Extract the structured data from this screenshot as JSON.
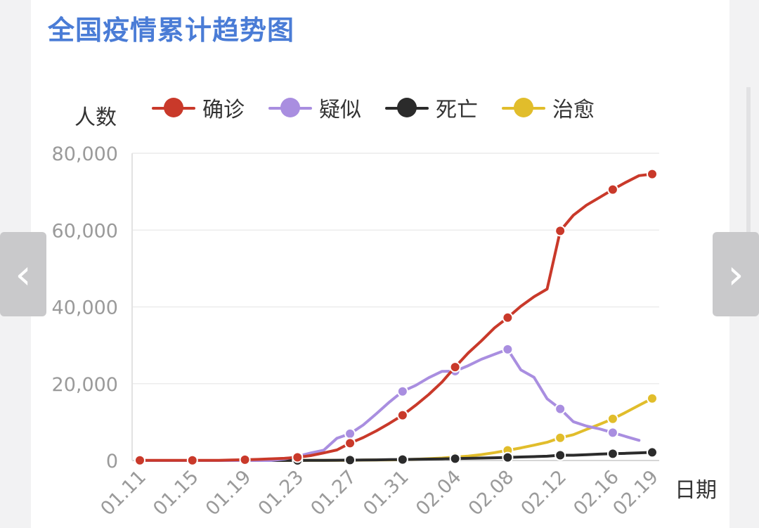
{
  "chart_data": {
    "type": "line",
    "title": "全国疫情累计趋势图",
    "ylabel": "人数",
    "xlabel": "日期",
    "ylim": [
      0,
      80000
    ],
    "yticks": [
      0,
      20000,
      40000,
      60000,
      80000
    ],
    "ytick_labels": [
      "0",
      "20,000",
      "40,000",
      "60,000",
      "80,000"
    ],
    "xticks": [
      "01.11",
      "01.15",
      "01.19",
      "01.23",
      "01.27",
      "01.31",
      "02.04",
      "02.08",
      "02.12",
      "02.16",
      "02.19"
    ],
    "x": [
      "01.11",
      "01.12",
      "01.13",
      "01.14",
      "01.15",
      "01.16",
      "01.17",
      "01.18",
      "01.19",
      "01.20",
      "01.21",
      "01.22",
      "01.23",
      "01.24",
      "01.25",
      "01.26",
      "01.27",
      "01.28",
      "01.29",
      "01.30",
      "01.31",
      "02.01",
      "02.02",
      "02.03",
      "02.04",
      "02.05",
      "02.06",
      "02.07",
      "02.08",
      "02.09",
      "02.10",
      "02.11",
      "02.12",
      "02.13",
      "02.14",
      "02.15",
      "02.16",
      "02.17",
      "02.18",
      "02.19"
    ],
    "grid": true,
    "legend_position": "top",
    "series": [
      {
        "name": "确诊",
        "color": "#c9392a",
        "values": [
          41,
          41,
          41,
          41,
          41,
          45,
          62,
          121,
          198,
          291,
          440,
          571,
          830,
          1287,
          1975,
          2744,
          4515,
          5974,
          7711,
          9692,
          11791,
          14380,
          17205,
          20438,
          24324,
          28018,
          31161,
          34546,
          37198,
          40171,
          42638,
          44653,
          59804,
          63851,
          66492,
          68500,
          70548,
          72436,
          74185,
          74576
        ]
      },
      {
        "name": "疑似",
        "color": "#a98ee0",
        "values": [
          0,
          0,
          0,
          0,
          0,
          0,
          0,
          0,
          0,
          0,
          0,
          393,
          1072,
          1965,
          2684,
          5794,
          6973,
          9239,
          12167,
          15238,
          17988,
          19544,
          21558,
          23214,
          23260,
          24702,
          26359,
          27657,
          28942,
          23589,
          21675,
          16067,
          13435,
          10109,
          8969,
          8228,
          7264,
          6242,
          5248,
          null
        ]
      },
      {
        "name": "死亡",
        "color": "#2b2b2b",
        "values": [
          1,
          1,
          1,
          1,
          1,
          2,
          2,
          3,
          3,
          6,
          9,
          17,
          25,
          41,
          56,
          80,
          106,
          132,
          170,
          213,
          259,
          304,
          361,
          425,
          490,
          563,
          636,
          722,
          811,
          908,
          1016,
          1113,
          1367,
          1380,
          1523,
          1665,
          1770,
          1868,
          2004,
          2118
        ]
      },
      {
        "name": "治愈",
        "color": "#e1bd2b",
        "values": [
          0,
          0,
          0,
          0,
          0,
          0,
          0,
          0,
          0,
          0,
          25,
          25,
          34,
          38,
          49,
          51,
          60,
          103,
          124,
          171,
          243,
          328,
          475,
          632,
          892,
          1153,
          1540,
          2050,
          2649,
          3281,
          3996,
          4740,
          5911,
          6723,
          8096,
          9419,
          10844,
          12552,
          14376,
          16155
        ]
      }
    ]
  },
  "navigation": {
    "prev_symbol": "‹",
    "next_symbol": "›"
  }
}
